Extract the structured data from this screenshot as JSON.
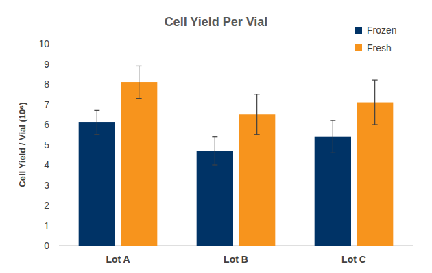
{
  "chart_data": {
    "type": "bar",
    "title": "Cell Yield Per Vial",
    "y_label": "Cell Yield / Vial (10⁶)",
    "categories": [
      "Lot A",
      "Lot B",
      "Lot C"
    ],
    "series": [
      {
        "name": "Frozen",
        "color": "#003366",
        "values": [
          6.1,
          4.7,
          5.4
        ],
        "errors": [
          0.6,
          0.7,
          0.8
        ]
      },
      {
        "name": "Fresh",
        "color": "#f7941d",
        "values": [
          8.1,
          6.5,
          7.1
        ],
        "errors": [
          0.8,
          1.0,
          1.1
        ]
      }
    ],
    "ylim": [
      0,
      10
    ],
    "yticks": [
      0,
      1,
      2,
      3,
      4,
      5,
      6,
      7,
      8,
      9,
      10
    ],
    "grid": false,
    "legend": "top-right"
  }
}
